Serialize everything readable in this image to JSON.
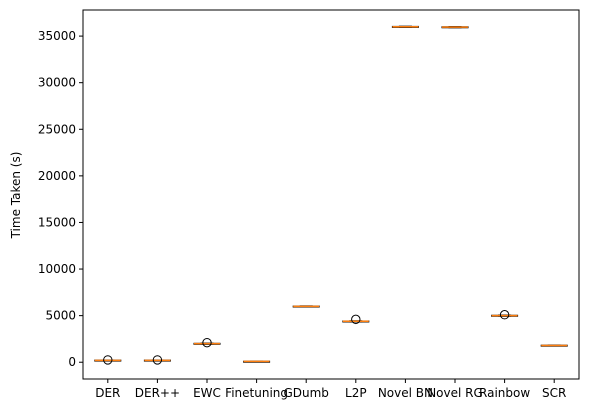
{
  "chart_data": {
    "type": "box",
    "ylabel": "Time Taken (s)",
    "ylim": [
      -1800,
      37800
    ],
    "y_ticks": [
      0,
      5000,
      10000,
      15000,
      20000,
      25000,
      30000,
      35000
    ],
    "grid": false,
    "categories": [
      "DER",
      "DER++",
      "EWC",
      "Finetuning",
      "GDumb",
      "L2P",
      "Novel BN",
      "Novel RG",
      "Rainbow",
      "SCR"
    ],
    "boxes": [
      {
        "category": "DER",
        "q1": 180,
        "median": 200,
        "q3": 230,
        "whisker_low": 170,
        "whisker_high": 240,
        "outliers": [
          250
        ]
      },
      {
        "category": "DER++",
        "q1": 180,
        "median": 200,
        "q3": 230,
        "whisker_low": 170,
        "whisker_high": 240,
        "outliers": [
          250
        ]
      },
      {
        "category": "EWC",
        "q1": 1960,
        "median": 2000,
        "q3": 2030,
        "whisker_low": 1940,
        "whisker_high": 2050,
        "outliers": [
          2100
        ]
      },
      {
        "category": "Finetuning",
        "q1": 70,
        "median": 90,
        "q3": 110,
        "whisker_low": 60,
        "whisker_high": 120,
        "outliers": []
      },
      {
        "category": "GDumb",
        "q1": 5960,
        "median": 6000,
        "q3": 6030,
        "whisker_low": 5940,
        "whisker_high": 6050,
        "outliers": []
      },
      {
        "category": "L2P",
        "q1": 4360,
        "median": 4400,
        "q3": 4430,
        "whisker_low": 4340,
        "whisker_high": 4450,
        "outliers": [
          4600
        ]
      },
      {
        "category": "Novel BN",
        "q1": 35960,
        "median": 36000,
        "q3": 36040,
        "whisker_low": 35940,
        "whisker_high": 36060,
        "outliers": []
      },
      {
        "category": "Novel RG",
        "q1": 35920,
        "median": 35960,
        "q3": 36000,
        "whisker_low": 35900,
        "whisker_high": 36020,
        "outliers": []
      },
      {
        "category": "Rainbow",
        "q1": 4960,
        "median": 5000,
        "q3": 5040,
        "whisker_low": 4940,
        "whisker_high": 5060,
        "outliers": [
          5100
        ]
      },
      {
        "category": "SCR",
        "q1": 1780,
        "median": 1800,
        "q3": 1830,
        "whisker_low": 1770,
        "whisker_high": 1840,
        "outliers": []
      }
    ],
    "colors": {
      "median": "#ff7f0e",
      "box": "#000000",
      "outlier": "#000000"
    }
  }
}
